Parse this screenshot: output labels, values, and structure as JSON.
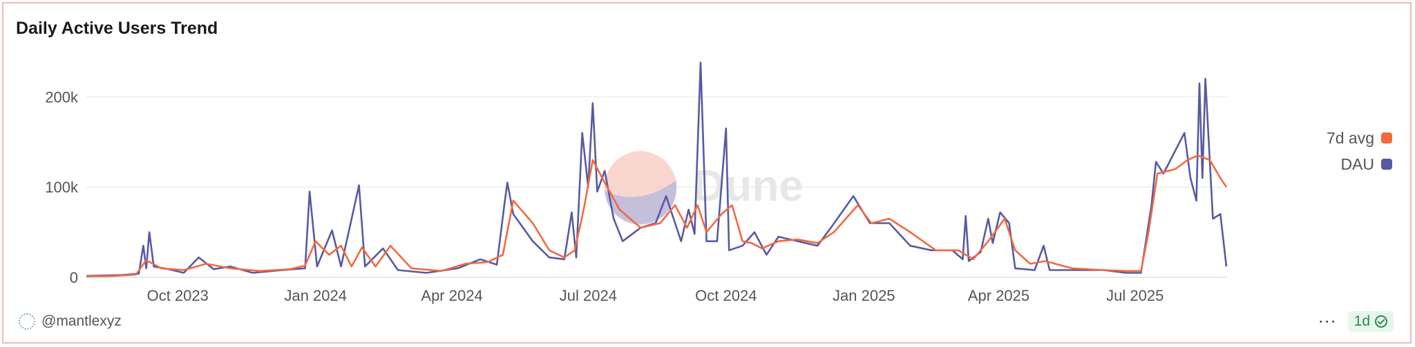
{
  "chart_data": {
    "type": "line",
    "title": "Daily Active Users Trend",
    "xlabel": "",
    "ylabel": "",
    "ylim": [
      0,
      250000
    ],
    "xlim": [
      "2023-08-01",
      "2025-08-31"
    ],
    "y_ticks": [
      0,
      100000,
      200000
    ],
    "y_tick_labels": [
      "0",
      "100k",
      "200k"
    ],
    "x_ticks": [
      "2023-10-01",
      "2024-01-01",
      "2024-04-01",
      "2024-07-01",
      "2024-10-01",
      "2025-01-01",
      "2025-04-01",
      "2025-07-01"
    ],
    "x_tick_labels": [
      "Oct 2023",
      "Jan 2024",
      "Apr 2024",
      "Jul 2024",
      "Oct 2024",
      "Jan 2025",
      "Apr 2025",
      "Jul 2025"
    ],
    "grid": true,
    "legend_position": "right",
    "series": [
      {
        "name": "7d avg",
        "color": "#f26a3d",
        "points": [
          [
            "2023-08-01",
            1000
          ],
          [
            "2023-08-20",
            1500
          ],
          [
            "2023-09-03",
            3000
          ],
          [
            "2023-09-10",
            19000
          ],
          [
            "2023-09-20",
            10000
          ],
          [
            "2023-10-05",
            8000
          ],
          [
            "2023-10-20",
            15000
          ],
          [
            "2023-11-05",
            10000
          ],
          [
            "2023-11-25",
            7000
          ],
          [
            "2023-12-15",
            9000
          ],
          [
            "2023-12-25",
            13000
          ],
          [
            "2024-01-01",
            40000
          ],
          [
            "2024-01-10",
            25000
          ],
          [
            "2024-01-18",
            35000
          ],
          [
            "2024-01-25",
            12000
          ],
          [
            "2024-02-01",
            33000
          ],
          [
            "2024-02-10",
            12000
          ],
          [
            "2024-02-20",
            35000
          ],
          [
            "2024-03-05",
            10000
          ],
          [
            "2024-03-25",
            7000
          ],
          [
            "2024-04-10",
            15000
          ],
          [
            "2024-04-25",
            17000
          ],
          [
            "2024-05-05",
            25000
          ],
          [
            "2024-05-12",
            85000
          ],
          [
            "2024-05-25",
            60000
          ],
          [
            "2024-06-05",
            30000
          ],
          [
            "2024-06-15",
            22000
          ],
          [
            "2024-06-22",
            30000
          ],
          [
            "2024-06-28",
            75000
          ],
          [
            "2024-07-04",
            130000
          ],
          [
            "2024-07-12",
            105000
          ],
          [
            "2024-07-22",
            75000
          ],
          [
            "2024-08-05",
            55000
          ],
          [
            "2024-08-18",
            60000
          ],
          [
            "2024-08-28",
            80000
          ],
          [
            "2024-09-05",
            55000
          ],
          [
            "2024-09-12",
            80000
          ],
          [
            "2024-09-18",
            50000
          ],
          [
            "2024-09-28",
            70000
          ],
          [
            "2024-10-05",
            80000
          ],
          [
            "2024-10-12",
            40000
          ],
          [
            "2024-10-18",
            38000
          ],
          [
            "2024-10-25",
            32000
          ],
          [
            "2024-11-05",
            40000
          ],
          [
            "2024-11-18",
            42000
          ],
          [
            "2024-12-01",
            38000
          ],
          [
            "2024-12-12",
            50000
          ],
          [
            "2024-12-28",
            80000
          ],
          [
            "2025-01-06",
            60000
          ],
          [
            "2025-01-18",
            65000
          ],
          [
            "2025-02-01",
            50000
          ],
          [
            "2025-02-18",
            30000
          ],
          [
            "2025-03-05",
            30000
          ],
          [
            "2025-03-15",
            20000
          ],
          [
            "2025-03-25",
            40000
          ],
          [
            "2025-04-05",
            65000
          ],
          [
            "2025-04-12",
            30000
          ],
          [
            "2025-04-22",
            15000
          ],
          [
            "2025-05-02",
            18000
          ],
          [
            "2025-05-20",
            10000
          ],
          [
            "2025-06-10",
            8000
          ],
          [
            "2025-06-25",
            7000
          ],
          [
            "2025-07-05",
            7000
          ],
          [
            "2025-07-10",
            50000
          ],
          [
            "2025-07-16",
            115000
          ],
          [
            "2025-07-28",
            120000
          ],
          [
            "2025-08-05",
            130000
          ],
          [
            "2025-08-12",
            135000
          ],
          [
            "2025-08-20",
            130000
          ],
          [
            "2025-08-27",
            110000
          ],
          [
            "2025-08-31",
            100000
          ]
        ]
      },
      {
        "name": "DAU",
        "color": "#565aa3",
        "points": [
          [
            "2023-08-01",
            1500
          ],
          [
            "2023-08-25",
            2500
          ],
          [
            "2023-09-05",
            4000
          ],
          [
            "2023-09-08",
            35000
          ],
          [
            "2023-09-10",
            10000
          ],
          [
            "2023-09-12",
            50000
          ],
          [
            "2023-09-15",
            12000
          ],
          [
            "2023-09-25",
            9000
          ],
          [
            "2023-10-05",
            5000
          ],
          [
            "2023-10-15",
            22000
          ],
          [
            "2023-10-25",
            9000
          ],
          [
            "2023-11-05",
            12000
          ],
          [
            "2023-11-20",
            5000
          ],
          [
            "2023-12-10",
            8000
          ],
          [
            "2023-12-25",
            10000
          ],
          [
            "2023-12-28",
            95000
          ],
          [
            "2024-01-02",
            12000
          ],
          [
            "2024-01-12",
            52000
          ],
          [
            "2024-01-18",
            12000
          ],
          [
            "2024-01-30",
            102000
          ],
          [
            "2024-02-03",
            12000
          ],
          [
            "2024-02-15",
            32000
          ],
          [
            "2024-02-25",
            8000
          ],
          [
            "2024-03-15",
            5000
          ],
          [
            "2024-04-05",
            10000
          ],
          [
            "2024-04-20",
            20000
          ],
          [
            "2024-05-01",
            14000
          ],
          [
            "2024-05-06",
            80000
          ],
          [
            "2024-05-08",
            105000
          ],
          [
            "2024-05-12",
            70000
          ],
          [
            "2024-05-25",
            40000
          ],
          [
            "2024-06-05",
            22000
          ],
          [
            "2024-06-15",
            20000
          ],
          [
            "2024-06-20",
            72000
          ],
          [
            "2024-06-23",
            22000
          ],
          [
            "2024-06-27",
            160000
          ],
          [
            "2024-07-01",
            100000
          ],
          [
            "2024-07-04",
            193000
          ],
          [
            "2024-07-07",
            95000
          ],
          [
            "2024-07-12",
            118000
          ],
          [
            "2024-07-18",
            65000
          ],
          [
            "2024-07-24",
            40000
          ],
          [
            "2024-08-05",
            55000
          ],
          [
            "2024-08-15",
            60000
          ],
          [
            "2024-08-22",
            90000
          ],
          [
            "2024-09-01",
            40000
          ],
          [
            "2024-09-06",
            75000
          ],
          [
            "2024-09-10",
            48000
          ],
          [
            "2024-09-14",
            238000
          ],
          [
            "2024-09-18",
            40000
          ],
          [
            "2024-09-25",
            40000
          ],
          [
            "2024-10-01",
            165000
          ],
          [
            "2024-10-03",
            30000
          ],
          [
            "2024-10-12",
            35000
          ],
          [
            "2024-10-20",
            50000
          ],
          [
            "2024-10-28",
            25000
          ],
          [
            "2024-11-05",
            45000
          ],
          [
            "2024-11-18",
            40000
          ],
          [
            "2024-12-01",
            35000
          ],
          [
            "2024-12-10",
            55000
          ],
          [
            "2024-12-25",
            90000
          ],
          [
            "2025-01-05",
            60000
          ],
          [
            "2025-01-18",
            60000
          ],
          [
            "2025-02-01",
            35000
          ],
          [
            "2025-02-15",
            30000
          ],
          [
            "2025-03-01",
            30000
          ],
          [
            "2025-03-08",
            20000
          ],
          [
            "2025-03-10",
            68000
          ],
          [
            "2025-03-12",
            18000
          ],
          [
            "2025-03-20",
            28000
          ],
          [
            "2025-03-25",
            65000
          ],
          [
            "2025-03-28",
            38000
          ],
          [
            "2025-04-02",
            72000
          ],
          [
            "2025-04-08",
            60000
          ],
          [
            "2025-04-12",
            10000
          ],
          [
            "2025-04-25",
            8000
          ],
          [
            "2025-05-01",
            35000
          ],
          [
            "2025-05-05",
            8000
          ],
          [
            "2025-05-20",
            8000
          ],
          [
            "2025-06-10",
            8000
          ],
          [
            "2025-06-25",
            5000
          ],
          [
            "2025-07-05",
            5000
          ],
          [
            "2025-07-12",
            80000
          ],
          [
            "2025-07-15",
            128000
          ],
          [
            "2025-07-20",
            115000
          ],
          [
            "2025-08-03",
            160000
          ],
          [
            "2025-08-07",
            110000
          ],
          [
            "2025-08-11",
            85000
          ],
          [
            "2025-08-13",
            215000
          ],
          [
            "2025-08-15",
            110000
          ],
          [
            "2025-08-17",
            220000
          ],
          [
            "2025-08-22",
            65000
          ],
          [
            "2025-08-27",
            70000
          ],
          [
            "2025-08-31",
            12000
          ]
        ]
      }
    ]
  },
  "watermark": "Dune",
  "footer": {
    "author": "@mantlexyz",
    "more": "···",
    "refresh": "1d"
  },
  "icons": {
    "author_avatar": "avatar-icon",
    "more": "more-icon",
    "refresh_check": "check-circle-icon"
  }
}
